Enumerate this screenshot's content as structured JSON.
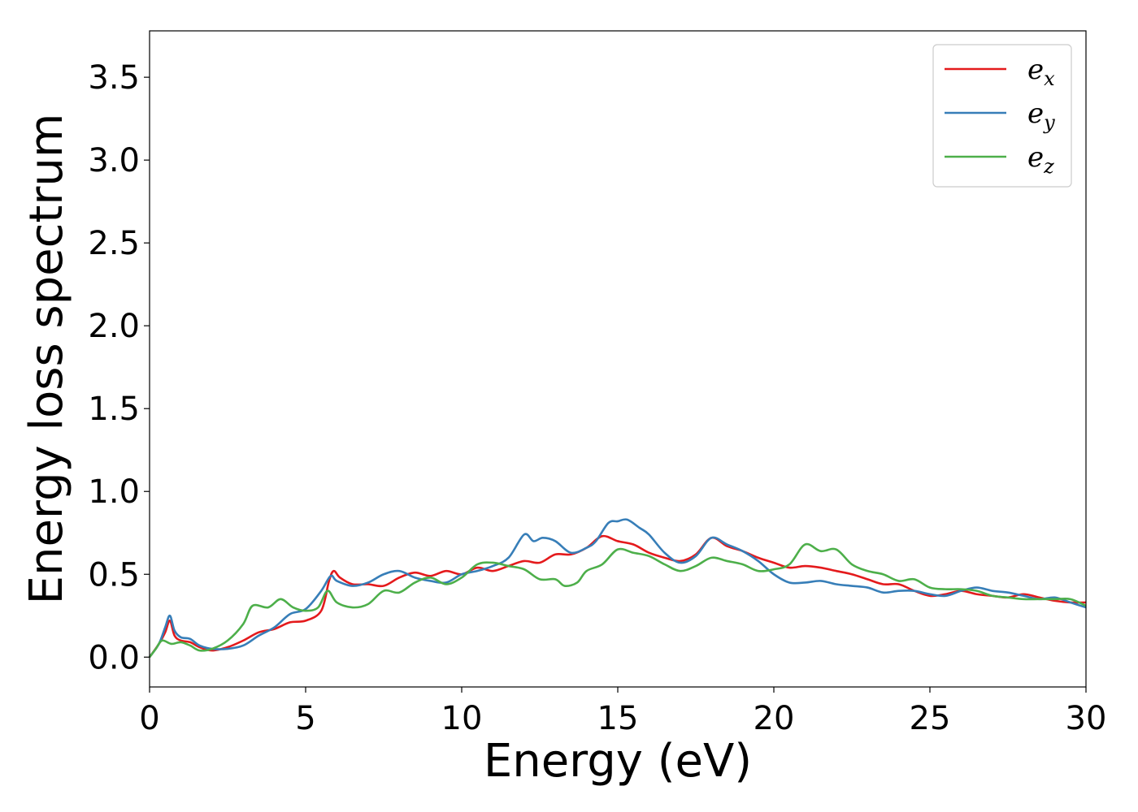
{
  "chart_data": {
    "type": "line",
    "title": "",
    "xlabel": "Energy (eV)",
    "ylabel": "Energy loss spectrum",
    "xlim": [
      0,
      30
    ],
    "ylim": [
      -0.18,
      3.78
    ],
    "xticks": [
      "0",
      "5",
      "10",
      "15",
      "20",
      "25",
      "30"
    ],
    "yticks": [
      "0.0",
      "0.5",
      "1.0",
      "1.5",
      "2.0",
      "2.5",
      "3.0",
      "3.5"
    ],
    "grid": false,
    "legend_position": "top-right",
    "series": [
      {
        "name": "e",
        "subscript": "x",
        "color": "#e41a1c",
        "x": [
          0,
          0.3,
          0.5,
          0.65,
          0.8,
          1.0,
          1.3,
          1.6,
          2.0,
          2.5,
          3.0,
          3.5,
          4.0,
          4.5,
          5.0,
          5.5,
          5.75,
          5.9,
          6.1,
          6.5,
          7.0,
          7.5,
          8.0,
          8.5,
          9.0,
          9.5,
          10.0,
          10.5,
          11.0,
          11.5,
          12.0,
          12.5,
          13.0,
          13.5,
          14.0,
          14.5,
          15.0,
          15.5,
          16.0,
          16.5,
          17.0,
          17.5,
          18.0,
          18.5,
          19.0,
          19.5,
          20.0,
          20.5,
          21.0,
          21.5,
          22.0,
          22.5,
          23.0,
          23.5,
          24.0,
          24.5,
          25.0,
          25.5,
          26.0,
          26.5,
          27.0,
          27.5,
          28.0,
          28.5,
          29.0,
          29.5,
          30.0
        ],
        "y": [
          0.0,
          0.08,
          0.15,
          0.22,
          0.13,
          0.1,
          0.09,
          0.06,
          0.04,
          0.06,
          0.1,
          0.15,
          0.17,
          0.21,
          0.22,
          0.28,
          0.46,
          0.52,
          0.48,
          0.44,
          0.44,
          0.43,
          0.48,
          0.51,
          0.49,
          0.52,
          0.5,
          0.54,
          0.52,
          0.55,
          0.58,
          0.57,
          0.62,
          0.62,
          0.66,
          0.73,
          0.7,
          0.68,
          0.63,
          0.6,
          0.58,
          0.62,
          0.72,
          0.67,
          0.64,
          0.6,
          0.57,
          0.54,
          0.55,
          0.54,
          0.52,
          0.5,
          0.47,
          0.44,
          0.44,
          0.4,
          0.37,
          0.38,
          0.4,
          0.38,
          0.37,
          0.36,
          0.38,
          0.36,
          0.34,
          0.33,
          0.33
        ]
      },
      {
        "name": "e",
        "subscript": "y",
        "color": "#377eb8",
        "x": [
          0,
          0.3,
          0.5,
          0.65,
          0.8,
          1.0,
          1.3,
          1.6,
          2.0,
          2.5,
          3.0,
          3.5,
          4.0,
          4.5,
          5.0,
          5.5,
          5.8,
          6.0,
          6.5,
          7.0,
          7.5,
          8.0,
          8.5,
          9.0,
          9.5,
          10.0,
          10.5,
          11.0,
          11.5,
          12.0,
          12.3,
          12.6,
          13.0,
          13.5,
          14.0,
          14.3,
          14.7,
          15.0,
          15.3,
          15.7,
          16.0,
          16.5,
          17.0,
          17.5,
          18.0,
          18.5,
          19.0,
          19.5,
          20.0,
          20.5,
          21.0,
          21.5,
          22.0,
          22.5,
          23.0,
          23.5,
          24.0,
          24.5,
          25.0,
          25.5,
          26.0,
          26.5,
          27.0,
          27.5,
          28.0,
          28.5,
          29.0,
          29.5,
          30.0
        ],
        "y": [
          0.0,
          0.08,
          0.18,
          0.25,
          0.16,
          0.12,
          0.11,
          0.07,
          0.05,
          0.05,
          0.07,
          0.13,
          0.18,
          0.26,
          0.29,
          0.4,
          0.49,
          0.46,
          0.43,
          0.45,
          0.5,
          0.52,
          0.48,
          0.46,
          0.45,
          0.5,
          0.52,
          0.55,
          0.6,
          0.74,
          0.7,
          0.72,
          0.7,
          0.63,
          0.66,
          0.7,
          0.81,
          0.82,
          0.83,
          0.78,
          0.74,
          0.63,
          0.57,
          0.61,
          0.72,
          0.68,
          0.64,
          0.58,
          0.5,
          0.45,
          0.45,
          0.46,
          0.44,
          0.43,
          0.42,
          0.39,
          0.4,
          0.4,
          0.38,
          0.37,
          0.4,
          0.42,
          0.4,
          0.39,
          0.37,
          0.35,
          0.36,
          0.33,
          0.3
        ]
      },
      {
        "name": "e",
        "subscript": "z",
        "color": "#4daf4a",
        "x": [
          0,
          0.2,
          0.4,
          0.7,
          1.0,
          1.3,
          1.6,
          2.0,
          2.5,
          3.0,
          3.3,
          3.8,
          4.2,
          4.6,
          5.0,
          5.4,
          5.7,
          6.0,
          6.5,
          7.0,
          7.5,
          8.0,
          8.5,
          9.0,
          9.5,
          10.0,
          10.5,
          11.0,
          11.5,
          12.0,
          12.5,
          13.0,
          13.3,
          13.7,
          14.0,
          14.5,
          15.0,
          15.5,
          16.0,
          16.5,
          17.0,
          17.5,
          18.0,
          18.5,
          19.0,
          19.5,
          20.0,
          20.5,
          21.0,
          21.5,
          22.0,
          22.5,
          23.0,
          23.5,
          24.0,
          24.5,
          25.0,
          25.5,
          26.0,
          26.5,
          27.0,
          27.5,
          28.0,
          28.5,
          29.0,
          29.5,
          30.0
        ],
        "y": [
          0.0,
          0.05,
          0.1,
          0.08,
          0.09,
          0.07,
          0.04,
          0.05,
          0.1,
          0.2,
          0.31,
          0.3,
          0.35,
          0.3,
          0.28,
          0.3,
          0.4,
          0.33,
          0.3,
          0.32,
          0.4,
          0.39,
          0.45,
          0.48,
          0.44,
          0.48,
          0.56,
          0.57,
          0.55,
          0.53,
          0.47,
          0.47,
          0.43,
          0.45,
          0.52,
          0.56,
          0.65,
          0.63,
          0.61,
          0.56,
          0.52,
          0.55,
          0.6,
          0.58,
          0.56,
          0.52,
          0.53,
          0.56,
          0.68,
          0.64,
          0.65,
          0.56,
          0.52,
          0.5,
          0.46,
          0.47,
          0.42,
          0.41,
          0.41,
          0.4,
          0.37,
          0.36,
          0.35,
          0.35,
          0.35,
          0.35,
          0.31
        ]
      }
    ]
  }
}
